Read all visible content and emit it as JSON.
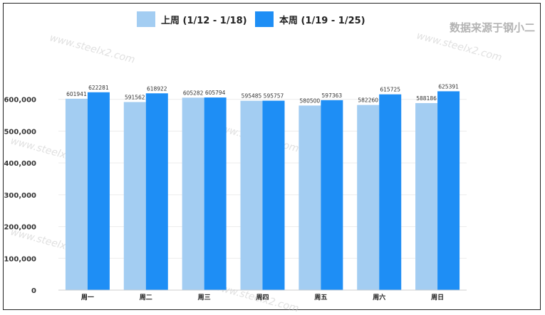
{
  "chart_data": {
    "type": "bar",
    "categories": [
      "周一",
      "周二",
      "周三",
      "周四",
      "周五",
      "周六",
      "周日"
    ],
    "series": [
      {
        "name": "上周 (1/12 - 1/18)",
        "color": "#a3cdf2",
        "values": [
          601941,
          591562,
          605282,
          595485,
          580500,
          582260,
          588186
        ]
      },
      {
        "name": "本周 (1/19 - 1/25)",
        "color": "#1e8ef5",
        "values": [
          622281,
          618922,
          605794,
          595757,
          597363,
          615725,
          625391
        ]
      }
    ],
    "yticks": [
      "0",
      "100,000",
      "200,000",
      "300,000",
      "400,000",
      "500,000",
      "600,000"
    ],
    "ylim": [
      0,
      700000
    ],
    "grid": true,
    "legend_position": "top"
  },
  "source_label": "数据来源于钢小二",
  "watermark_text": "www.steelx2.com"
}
